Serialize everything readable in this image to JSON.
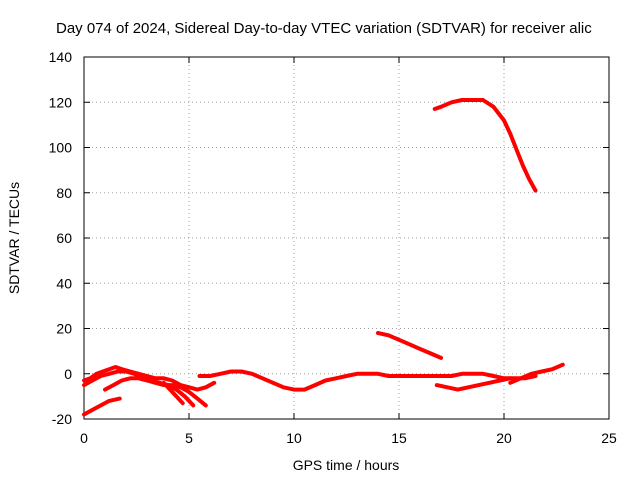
{
  "chart_data": {
    "type": "line",
    "title": "Day 074 of 2024, Sidereal Day-to-day VTEC variation (SDTVAR) for receiver alic",
    "xlabel": "GPS time / hours",
    "ylabel": "SDTVAR / TECUs",
    "xlim": [
      0,
      25
    ],
    "ylim": [
      -20,
      140
    ],
    "xticks": [
      0,
      5,
      10,
      15,
      20,
      25
    ],
    "yticks": [
      -20,
      0,
      20,
      40,
      60,
      80,
      100,
      120,
      140
    ],
    "grid": true,
    "legend": "none",
    "color": "#ff0000",
    "series": [
      {
        "x": [
          0.0,
          0.4,
          0.8,
          1.2,
          1.7
        ],
        "y": [
          -18,
          -16,
          -14,
          -12,
          -11
        ]
      },
      {
        "x": [
          0.0,
          0.3,
          0.6,
          0.9,
          1.2,
          1.5,
          1.8,
          2.2,
          2.6,
          3.0,
          3.4,
          3.8,
          4.2,
          4.6,
          5.0,
          5.4,
          5.8,
          6.2
        ],
        "y": [
          -3,
          -2,
          0,
          1,
          2,
          3,
          2,
          1,
          0,
          -1,
          -2,
          -2,
          -3,
          -5,
          -6,
          -7,
          -6,
          -4
        ]
      },
      {
        "x": [
          0.0,
          0.4,
          0.8,
          1.2,
          1.6,
          2.0,
          2.4,
          2.8,
          3.2,
          3.6,
          4.0,
          4.4,
          4.8,
          5.2
        ],
        "y": [
          -5,
          -3,
          -1,
          0,
          1,
          1,
          0,
          -2,
          -3,
          -4,
          -5,
          -7,
          -10,
          -14
        ]
      },
      {
        "x": [
          1.0,
          1.4,
          1.8,
          2.2,
          2.6,
          3.0,
          3.4,
          3.8,
          4.2,
          4.6,
          5.0,
          5.4,
          5.8
        ],
        "y": [
          -7,
          -5,
          -3,
          -2,
          -2,
          -3,
          -4,
          -5,
          -5,
          -6,
          -8,
          -11,
          -14
        ]
      },
      {
        "x": [
          3.8,
          4.1,
          4.4,
          4.7
        ],
        "y": [
          -4,
          -7,
          -10,
          -13
        ]
      },
      {
        "x": [
          5.5,
          6.0,
          6.5,
          7.0,
          7.5,
          8.0,
          8.5,
          9.0,
          9.5,
          10.0,
          10.5,
          11.0,
          11.5,
          12.0,
          12.5,
          13.0,
          13.5,
          14.0,
          14.5,
          15.0,
          15.5,
          16.0,
          16.5,
          17.0,
          17.5,
          18.0,
          18.5,
          19.0,
          19.5,
          20.0,
          20.5,
          21.0,
          21.5
        ],
        "y": [
          -1,
          -1,
          0,
          1,
          1,
          0,
          -2,
          -4,
          -6,
          -7,
          -7,
          -5,
          -3,
          -2,
          -1,
          0,
          0,
          0,
          -1,
          -1,
          -1,
          -1,
          -1,
          -1,
          -1,
          0,
          0,
          0,
          -1,
          -2,
          -2,
          -2,
          -1
        ]
      },
      {
        "x": [
          16.8,
          17.3,
          17.8,
          18.3,
          18.8,
          19.3,
          19.8,
          20.3
        ],
        "y": [
          -5,
          -6,
          -7,
          -6,
          -5,
          -4,
          -3,
          -2
        ]
      },
      {
        "x": [
          20.3,
          20.8,
          21.3,
          21.8,
          22.3,
          22.8
        ],
        "y": [
          -4,
          -2,
          0,
          1,
          2,
          4
        ]
      },
      {
        "x": [
          14.0,
          14.5,
          15.0,
          15.5,
          16.0,
          16.5,
          17.0
        ],
        "y": [
          18,
          17,
          15,
          13,
          11,
          9,
          7
        ]
      },
      {
        "x": [
          16.7,
          17.0,
          17.5,
          18.0,
          18.5,
          19.0,
          19.5,
          20.0,
          20.3,
          20.6,
          20.9,
          21.2,
          21.5
        ],
        "y": [
          117,
          118,
          120,
          121,
          121,
          121,
          118,
          112,
          106,
          99,
          92,
          86,
          81
        ]
      }
    ]
  }
}
